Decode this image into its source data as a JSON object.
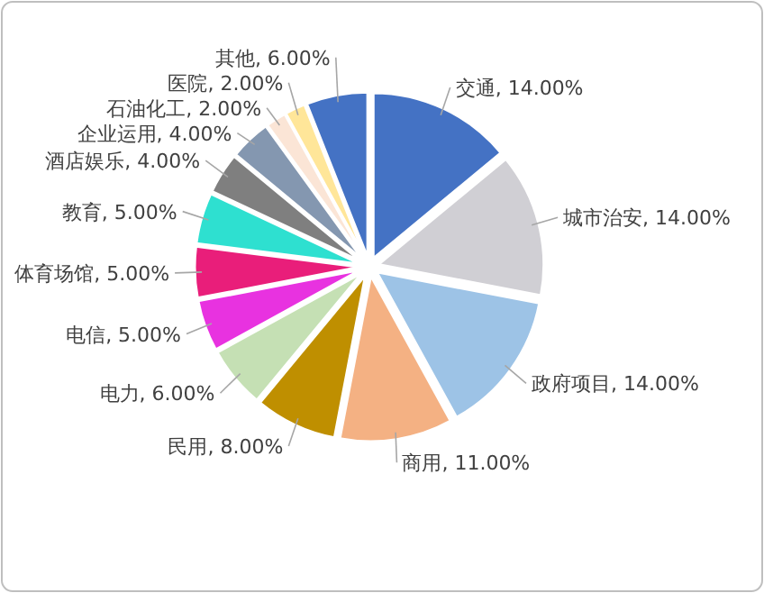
{
  "chart_data": {
    "type": "pie",
    "categories": [
      "交通",
      "城市治安",
      "政府项目",
      "商用",
      "民用",
      "电力",
      "电信",
      "体育场馆",
      "教育",
      "酒店娱乐",
      "企业运用",
      "石油化工",
      "医院",
      "其他"
    ],
    "values": [
      14,
      14,
      14,
      11,
      8,
      6,
      5,
      5,
      5,
      4,
      4,
      2,
      2,
      6
    ],
    "value_labels": [
      "14.00%",
      "14.00%",
      "14.00%",
      "11.00%",
      "8.00%",
      "6.00%",
      "5.00%",
      "5.00%",
      "5.00%",
      "4.00%",
      "4.00%",
      "2.00%",
      "2.00%",
      "6.00%"
    ],
    "colors": [
      "#4472c4",
      "#d0cfd4",
      "#9dc3e6",
      "#f4b183",
      "#bf8f00",
      "#c5e0b4",
      "#e832e0",
      "#e91e7a",
      "#2ee0d0",
      "#7f7f7f",
      "#8497b0",
      "#fbe5d6",
      "#ffe699",
      "#4472c4"
    ]
  }
}
